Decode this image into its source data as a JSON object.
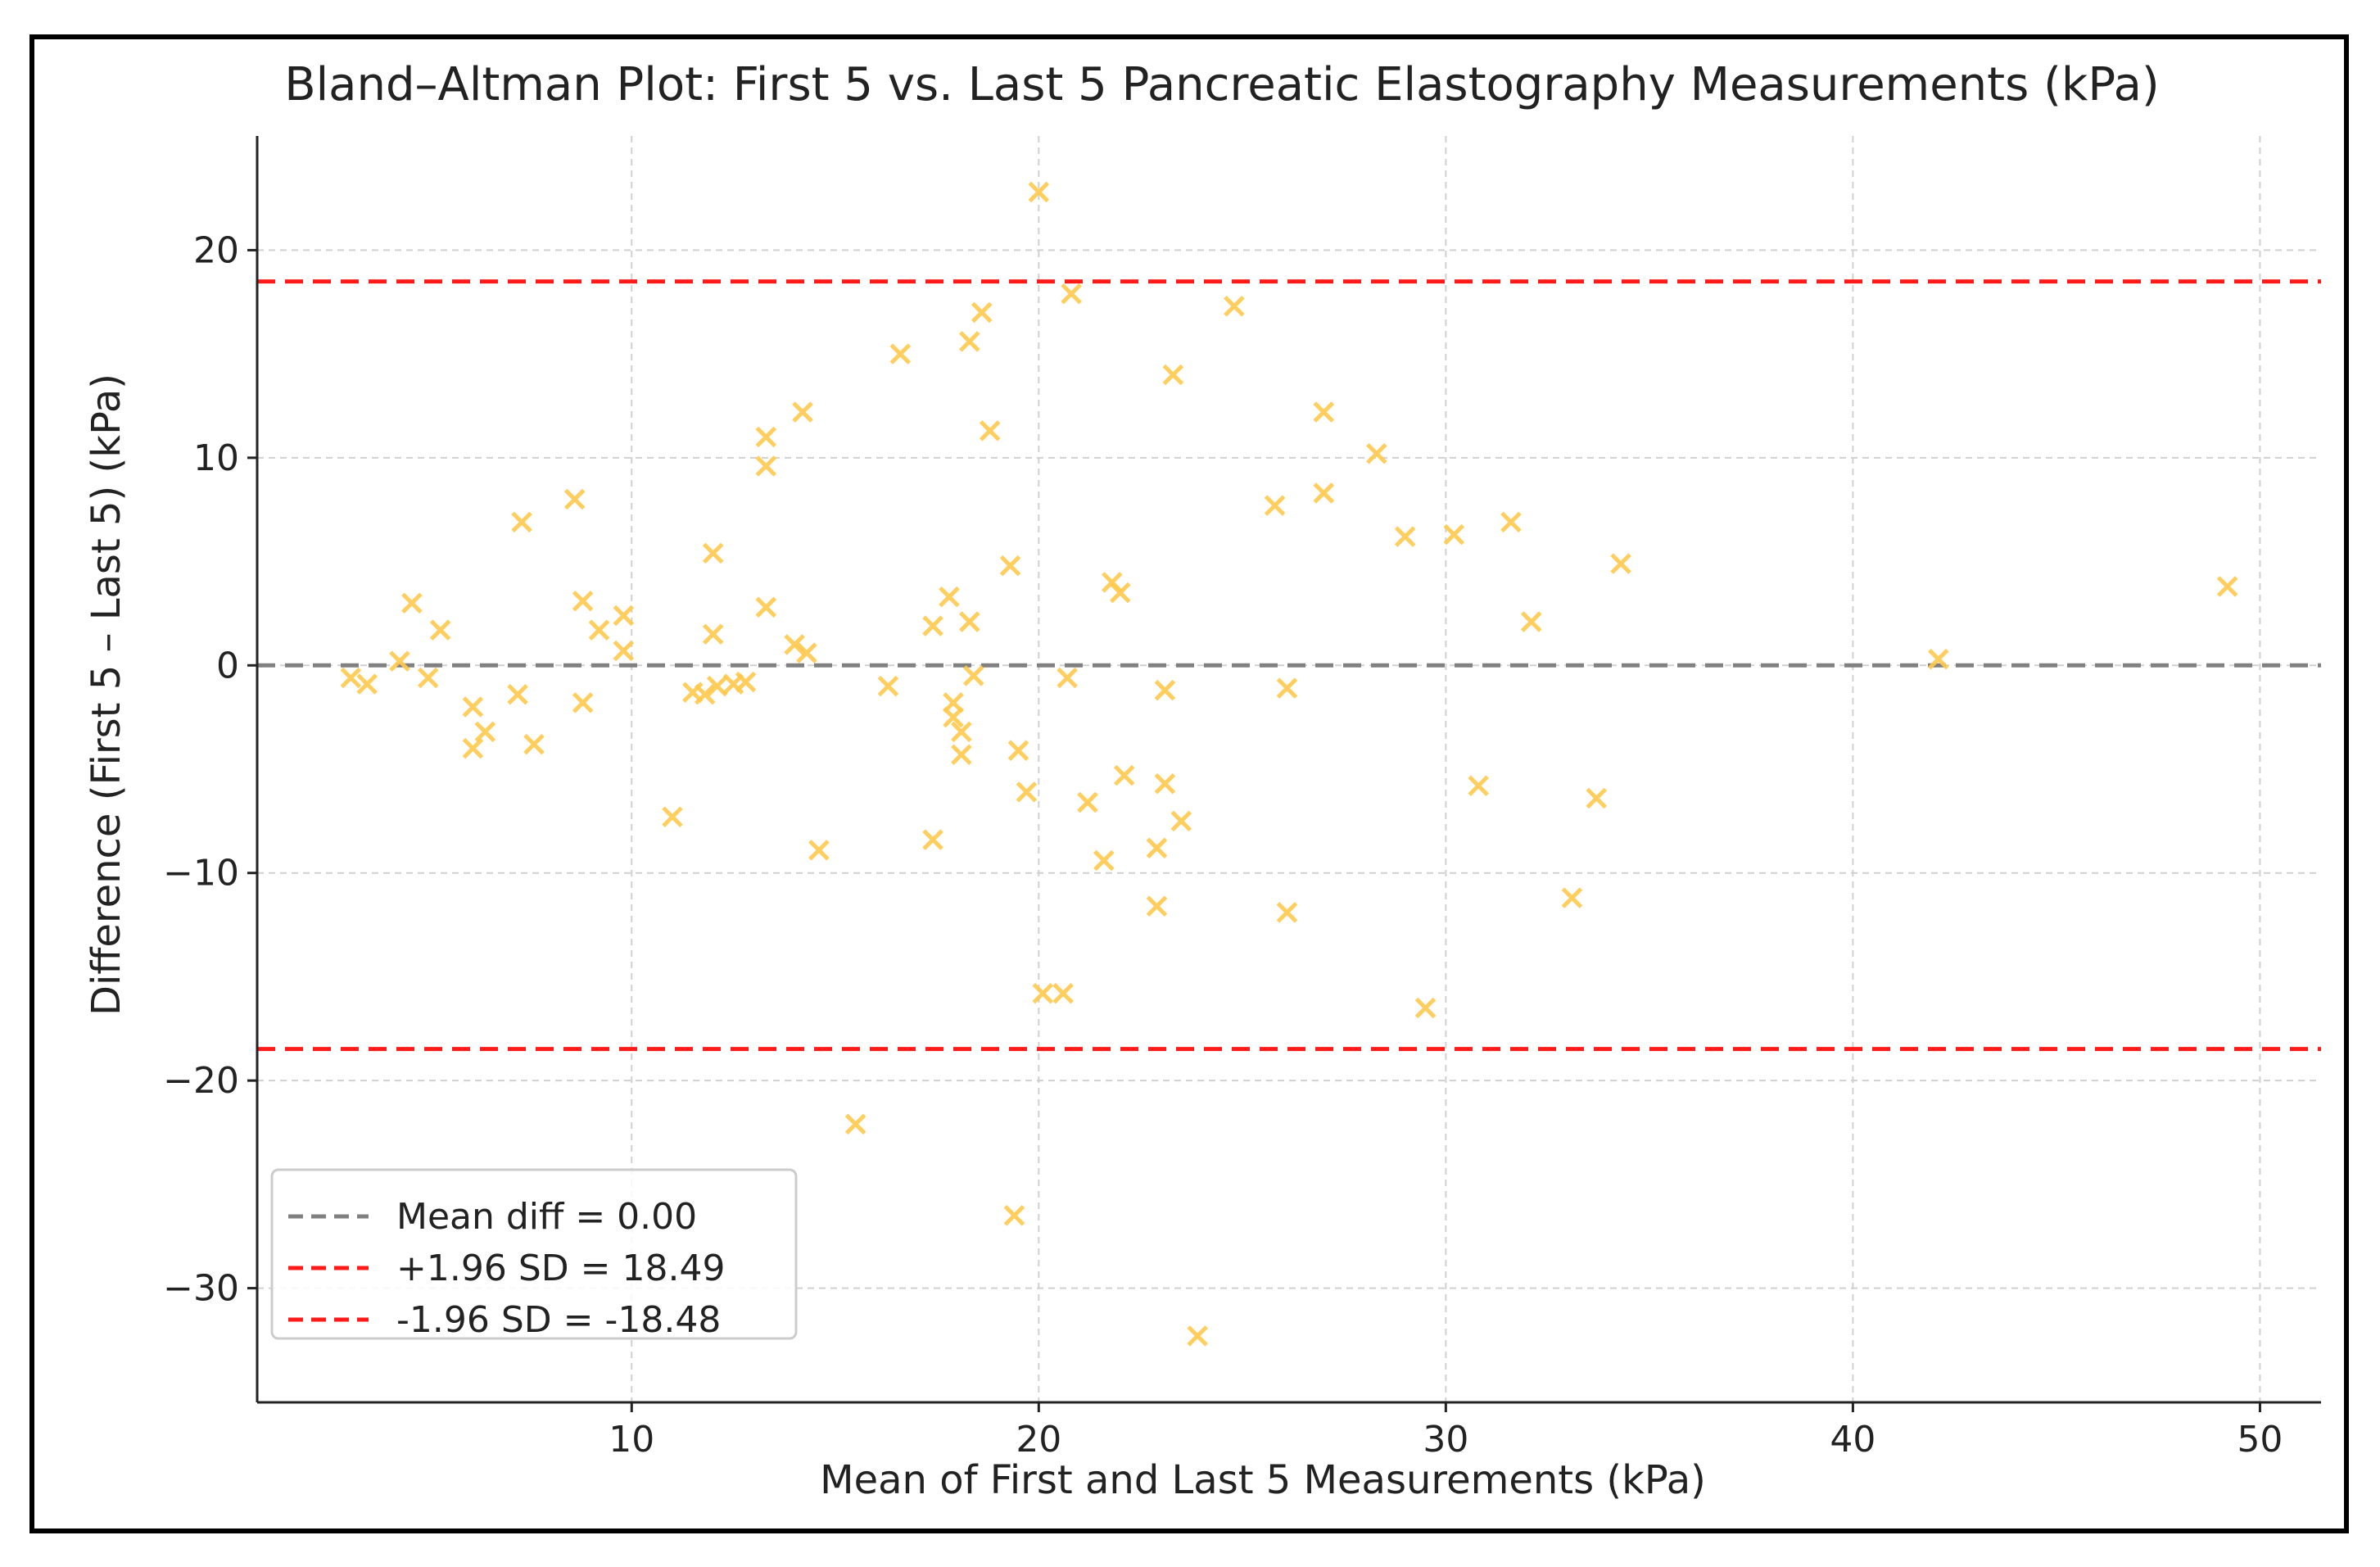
{
  "chart_data": {
    "type": "scatter",
    "title": "Bland–Altman Plot: First 5 vs. Last 5 Pancreatic Elastography Measurements (kPa)",
    "xlabel": "Mean of First and Last 5 Measurements (kPa)",
    "ylabel": "Difference (First 5 – Last 5) (kPa)",
    "xlim": [
      0.8,
      51.5
    ],
    "ylim": [
      -35.5,
      25.5
    ],
    "xticks": [
      10,
      20,
      30,
      40,
      50
    ],
    "xtick_labels": [
      "10",
      "20",
      "30",
      "40",
      "50"
    ],
    "yticks": [
      -30,
      -20,
      -10,
      0,
      10,
      20
    ],
    "ytick_labels": [
      "−30",
      "−20",
      "−10",
      "0",
      "10",
      "20"
    ],
    "grid": true,
    "marker": "x",
    "marker_color": "#FFC94D",
    "lines": [
      {
        "name": "Mean diff = 0.00",
        "y": 0.0,
        "color": "#808080",
        "style": "dashed"
      },
      {
        "name": "+1.96 SD = 18.49",
        "y": 18.49,
        "color": "#FF1A1A",
        "style": "dashed"
      },
      {
        "name": "-1.96 SD = -18.48",
        "y": -18.48,
        "color": "#FF1A1A",
        "style": "dashed"
      }
    ],
    "legend": {
      "position": "bottom-left",
      "entries": [
        {
          "label": "Mean diff = 0.00",
          "color": "#808080"
        },
        {
          "label": "+1.96 SD = 18.49",
          "color": "#FF1A1A"
        },
        {
          "label": "-1.96 SD = -18.48",
          "color": "#FF1A1A"
        }
      ]
    },
    "points": [
      {
        "x": 3.1,
        "y": -0.6
      },
      {
        "x": 3.5,
        "y": -0.9
      },
      {
        "x": 4.3,
        "y": 0.2
      },
      {
        "x": 4.6,
        "y": 3.0
      },
      {
        "x": 5.0,
        "y": -0.6
      },
      {
        "x": 5.3,
        "y": 1.7
      },
      {
        "x": 6.1,
        "y": -2.0
      },
      {
        "x": 6.1,
        "y": -4.0
      },
      {
        "x": 6.4,
        "y": -3.2
      },
      {
        "x": 7.2,
        "y": -1.4
      },
      {
        "x": 7.3,
        "y": 6.9
      },
      {
        "x": 7.6,
        "y": -3.8
      },
      {
        "x": 8.6,
        "y": 8.0
      },
      {
        "x": 8.8,
        "y": 3.1
      },
      {
        "x": 8.8,
        "y": -1.8
      },
      {
        "x": 9.2,
        "y": 1.7
      },
      {
        "x": 9.8,
        "y": 2.4
      },
      {
        "x": 9.8,
        "y": 0.7
      },
      {
        "x": 11.0,
        "y": -7.3
      },
      {
        "x": 11.5,
        "y": -1.3
      },
      {
        "x": 11.8,
        "y": -1.4
      },
      {
        "x": 12.0,
        "y": 5.4
      },
      {
        "x": 12.0,
        "y": 1.5
      },
      {
        "x": 12.1,
        "y": -1.0
      },
      {
        "x": 12.5,
        "y": -0.9
      },
      {
        "x": 12.8,
        "y": -0.8
      },
      {
        "x": 13.3,
        "y": 11.0
      },
      {
        "x": 13.3,
        "y": 9.6
      },
      {
        "x": 13.3,
        "y": 2.8
      },
      {
        "x": 14.0,
        "y": 1.0
      },
      {
        "x": 14.2,
        "y": 12.2
      },
      {
        "x": 14.3,
        "y": 0.6
      },
      {
        "x": 14.6,
        "y": -8.9
      },
      {
        "x": 15.5,
        "y": -22.1
      },
      {
        "x": 16.3,
        "y": -1.0
      },
      {
        "x": 16.6,
        "y": 15.0
      },
      {
        "x": 17.4,
        "y": 1.9
      },
      {
        "x": 17.4,
        "y": -8.4
      },
      {
        "x": 17.8,
        "y": 3.3
      },
      {
        "x": 17.9,
        "y": -1.8
      },
      {
        "x": 17.9,
        "y": -2.5
      },
      {
        "x": 18.1,
        "y": -3.2
      },
      {
        "x": 18.1,
        "y": -4.3
      },
      {
        "x": 18.3,
        "y": 15.6
      },
      {
        "x": 18.3,
        "y": 2.1
      },
      {
        "x": 18.4,
        "y": -0.5
      },
      {
        "x": 18.6,
        "y": 17.0
      },
      {
        "x": 18.8,
        "y": 11.3
      },
      {
        "x": 19.3,
        "y": 4.8
      },
      {
        "x": 19.4,
        "y": -26.5
      },
      {
        "x": 19.5,
        "y": -4.1
      },
      {
        "x": 19.7,
        "y": -6.1
      },
      {
        "x": 20.0,
        "y": 22.8
      },
      {
        "x": 20.1,
        "y": -15.8
      },
      {
        "x": 20.6,
        "y": -15.8
      },
      {
        "x": 20.7,
        "y": -0.6
      },
      {
        "x": 20.8,
        "y": 17.9
      },
      {
        "x": 21.2,
        "y": -6.6
      },
      {
        "x": 21.6,
        "y": -9.4
      },
      {
        "x": 21.8,
        "y": 4.0
      },
      {
        "x": 22.0,
        "y": 3.5
      },
      {
        "x": 22.1,
        "y": -5.3
      },
      {
        "x": 22.9,
        "y": -11.6
      },
      {
        "x": 22.9,
        "y": -8.8
      },
      {
        "x": 23.1,
        "y": -1.2
      },
      {
        "x": 23.1,
        "y": -5.7
      },
      {
        "x": 23.3,
        "y": 14.0
      },
      {
        "x": 23.5,
        "y": -7.5
      },
      {
        "x": 23.9,
        "y": -32.3
      },
      {
        "x": 24.8,
        "y": 17.3
      },
      {
        "x": 25.8,
        "y": 7.7
      },
      {
        "x": 26.1,
        "y": -1.1
      },
      {
        "x": 26.1,
        "y": -11.9
      },
      {
        "x": 27.0,
        "y": 12.2
      },
      {
        "x": 27.0,
        "y": 8.3
      },
      {
        "x": 28.3,
        "y": 10.2
      },
      {
        "x": 29.0,
        "y": 6.2
      },
      {
        "x": 29.5,
        "y": -16.5
      },
      {
        "x": 30.2,
        "y": 6.3
      },
      {
        "x": 30.8,
        "y": -5.8
      },
      {
        "x": 31.6,
        "y": 6.9
      },
      {
        "x": 32.1,
        "y": 2.1
      },
      {
        "x": 33.1,
        "y": -11.2
      },
      {
        "x": 33.7,
        "y": -6.4
      },
      {
        "x": 34.3,
        "y": 4.9
      },
      {
        "x": 42.1,
        "y": 0.3
      },
      {
        "x": 49.2,
        "y": 3.8
      }
    ]
  }
}
